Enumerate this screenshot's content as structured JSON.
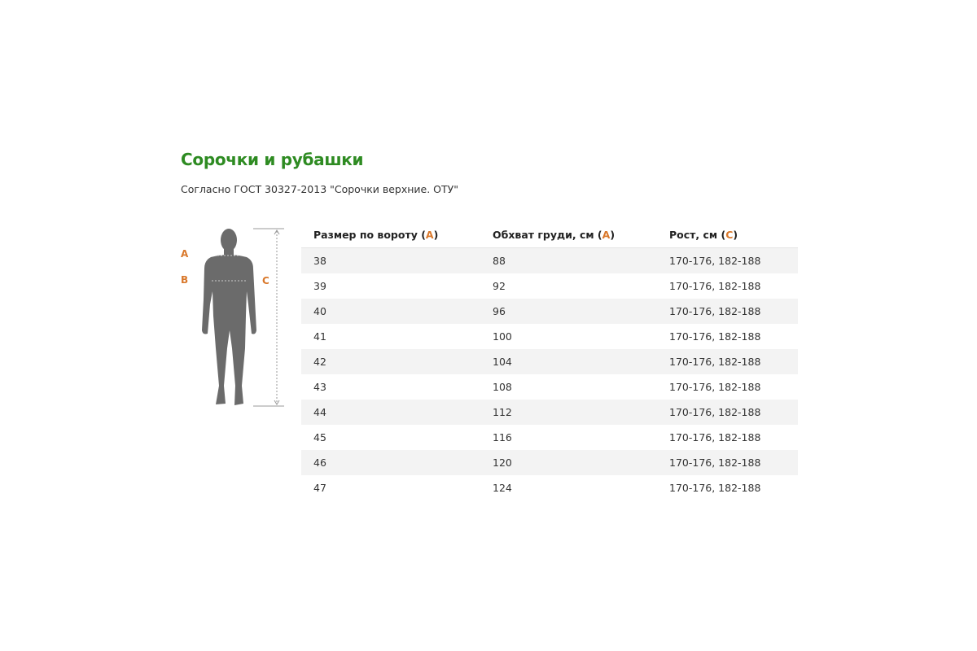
{
  "title": "Сорочки и рубашки",
  "subtitle": "Согласно ГОСТ 30327-2013 \"Сорочки верхние. ОТУ\"",
  "figure": {
    "labels": {
      "a": "A",
      "b": "B",
      "c": "C"
    }
  },
  "accent_color": "#d9782b",
  "title_color": "#2e8b22",
  "table": {
    "headers": [
      {
        "text": "Размер по вороту (",
        "letter": "A",
        "close": ")"
      },
      {
        "text": "Обхват груди, см (",
        "letter": "A",
        "close": ")"
      },
      {
        "text": "Рост, см (",
        "letter": "C",
        "close": ")"
      }
    ],
    "rows": [
      [
        "38",
        "88",
        "170-176, 182-188"
      ],
      [
        "39",
        "92",
        "170-176, 182-188"
      ],
      [
        "40",
        "96",
        "170-176, 182-188"
      ],
      [
        "41",
        "100",
        "170-176, 182-188"
      ],
      [
        "42",
        "104",
        "170-176, 182-188"
      ],
      [
        "43",
        "108",
        "170-176, 182-188"
      ],
      [
        "44",
        "112",
        "170-176, 182-188"
      ],
      [
        "45",
        "116",
        "170-176, 182-188"
      ],
      [
        "46",
        "120",
        "170-176, 182-188"
      ],
      [
        "47",
        "124",
        "170-176, 182-188"
      ]
    ]
  }
}
